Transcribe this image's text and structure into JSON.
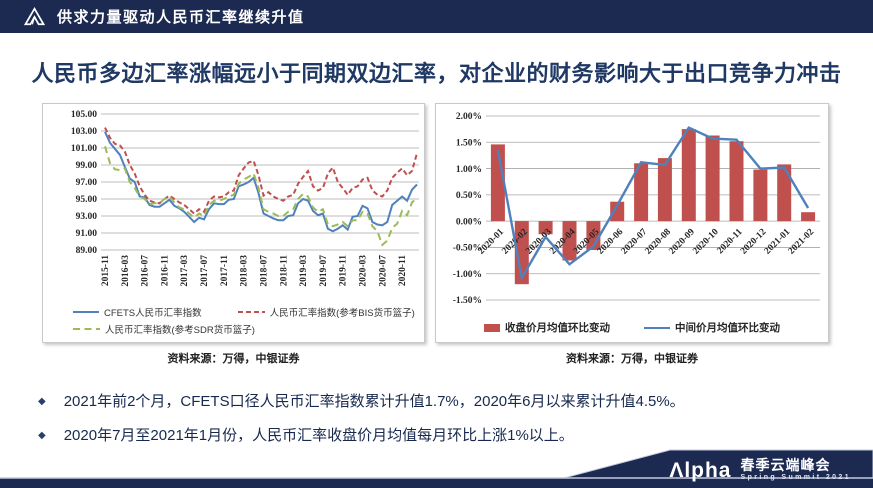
{
  "header": {
    "title": "供求力量驱动人民币汇率继续升值"
  },
  "slide_title": "人民币多边汇率涨幅远小于同期双边汇率，对企业的财务影响大于出口竞争力冲击",
  "chart_data": [
    {
      "id": "multilateral_index",
      "type": "line",
      "title": "",
      "ylim": [
        89,
        105
      ],
      "y_ticks": [
        "105.00",
        "103.00",
        "101.00",
        "99.00",
        "97.00",
        "95.00",
        "93.00",
        "91.00",
        "89.00"
      ],
      "tick_labels": [
        "2015-11",
        "2016-03",
        "2016-07",
        "2016-11",
        "2017-03",
        "2017-07",
        "2017-11",
        "2018-03",
        "2018-07",
        "2018-11",
        "2019-03",
        "2019-07",
        "2019-11",
        "2020-03",
        "2020-07",
        "2020-11"
      ],
      "n_points": 64,
      "grid": true,
      "legend_position": "bottom",
      "series": [
        {
          "name": "CFETS人民币汇率指数",
          "color": "#4F81BD",
          "dash": "solid",
          "values": [
            102.9,
            101.6,
            100.9,
            100.2,
            98.8,
            97.4,
            97.0,
            95.3,
            95.2,
            94.3,
            94.1,
            94.1,
            94.5,
            94.9,
            94.2,
            93.9,
            93.5,
            92.9,
            92.3,
            92.8,
            92.6,
            93.8,
            94.5,
            94.4,
            94.4,
            94.9,
            95.0,
            96.5,
            96.7,
            97.0,
            97.5,
            95.7,
            93.3,
            93.0,
            92.7,
            92.5,
            92.5,
            93.0,
            93.1,
            94.5,
            95.0,
            94.8,
            93.6,
            93.1,
            93.3,
            91.5,
            91.2,
            91.5,
            91.9,
            91.4,
            92.9,
            93.0,
            94.2,
            93.9,
            92.3,
            92.0,
            91.9,
            92.3,
            94.3,
            94.8,
            95.3,
            94.8,
            96.1,
            96.7
          ]
        },
        {
          "name": "人民币汇率指数(参考BIS货币篮子)",
          "color": "#C0504D",
          "dash": "dashed",
          "values": [
            103.4,
            102.2,
            101.5,
            101.3,
            100.6,
            99.0,
            98.0,
            96.5,
            95.5,
            94.8,
            94.6,
            94.5,
            95.0,
            95.4,
            95.0,
            94.6,
            94.3,
            93.8,
            93.3,
            93.8,
            93.5,
            94.8,
            95.3,
            95.2,
            95.3,
            95.8,
            96.0,
            97.8,
            98.6,
            99.3,
            99.5,
            97.8,
            95.4,
            95.8,
            95.3,
            95.0,
            94.8,
            95.3,
            95.5,
            96.8,
            97.6,
            98.3,
            96.5,
            96.0,
            96.3,
            98.0,
            98.7,
            97.0,
            96.3,
            95.5,
            96.3,
            96.5,
            97.3,
            97.5,
            96.0,
            95.5,
            95.3,
            96.0,
            97.5,
            98.1,
            98.6,
            97.8,
            98.3,
            100.4
          ]
        },
        {
          "name": "人民币汇率指数(参考SDR货币篮子)",
          "color": "#9BBB59",
          "dash": "longdash",
          "values": [
            101.2,
            99.2,
            98.5,
            98.4,
            98.6,
            97.0,
            96.3,
            95.3,
            95.0,
            94.4,
            94.5,
            94.5,
            95.0,
            95.3,
            94.6,
            94.0,
            93.8,
            93.3,
            92.8,
            93.3,
            93.0,
            94.3,
            94.8,
            94.8,
            95.0,
            95.3,
            95.5,
            96.8,
            97.3,
            97.6,
            98.0,
            96.3,
            93.8,
            93.5,
            93.3,
            93.0,
            93.0,
            93.5,
            93.8,
            95.0,
            95.6,
            95.3,
            94.0,
            93.5,
            93.8,
            92.0,
            91.8,
            92.0,
            92.3,
            91.8,
            92.5,
            92.5,
            93.5,
            93.3,
            91.8,
            91.2,
            89.6,
            90.1,
            91.6,
            92.1,
            93.6,
            93.1,
            94.6,
            95.1
          ]
        }
      ],
      "source": "资料来源：万得，中银证券"
    },
    {
      "id": "monthly_mom_change",
      "type": "bar",
      "title": "",
      "categories": [
        "2020-01",
        "2020-02",
        "2020-03",
        "2020-04",
        "2020-05",
        "2020-06",
        "2020-07",
        "2020-08",
        "2020-09",
        "2020-10",
        "2020-11",
        "2020-12",
        "2021-01",
        "2021-02"
      ],
      "ylim": [
        -1.5,
        2.0
      ],
      "y_ticks": [
        "2.00%",
        "1.50%",
        "1.00%",
        "0.50%",
        "0.00%",
        "-0.50%",
        "-1.00%",
        "-1.50%"
      ],
      "grid": true,
      "legend_position": "bottom",
      "series": [
        {
          "name": "收盘价月均值环比变动",
          "type": "bar",
          "color": "#C0504D",
          "values": [
            1.46,
            -1.2,
            -0.25,
            -0.75,
            -0.55,
            0.37,
            1.1,
            1.2,
            1.75,
            1.63,
            1.52,
            0.98,
            1.08,
            0.17
          ]
        },
        {
          "name": "中间价月均值环比变动",
          "type": "line",
          "color": "#4F81BD",
          "values": [
            1.35,
            -1.08,
            -0.3,
            -0.82,
            -0.48,
            0.3,
            1.12,
            1.07,
            1.78,
            1.57,
            1.55,
            1.0,
            1.02,
            0.25
          ]
        }
      ],
      "source": "资料来源：万得，中银证券"
    }
  ],
  "bullet_marker": "◆",
  "bullets": [
    "2021年前2个月，CFETS口径人民币汇率指数累计升值1.7%，2020年6月以来累计升值4.5%。",
    "2020年7月至2021年1月份，人民币汇率收盘价月均值每月环比上涨1%以上。"
  ],
  "footer": {
    "brand": "Λlpha",
    "event_cn": "春季云端峰会",
    "event_en": "Spring Summit 2021"
  },
  "colors": {
    "navy": "#1C2A52",
    "title_navy": "#1F3864",
    "bar_red": "#C0504D",
    "line_blue": "#4F81BD",
    "line_green": "#9BBB59",
    "grid": "#A6A6A6"
  }
}
